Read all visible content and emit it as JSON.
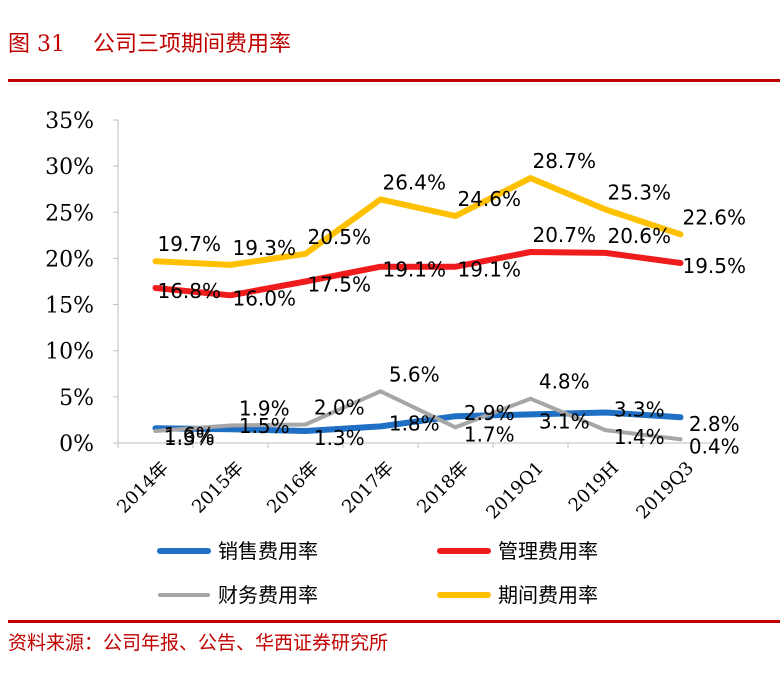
{
  "figure": {
    "number": "图 31",
    "title": "公司三项期间费用率",
    "source": "资料来源：公司年报、公告、华西证券研究所"
  },
  "chart_data": {
    "type": "line",
    "categories": [
      "2014年",
      "2015年",
      "2016年",
      "2017年",
      "2018年",
      "2019Q1",
      "2019H",
      "2019Q3"
    ],
    "ylim": [
      0,
      35
    ],
    "yticks": [
      "0%",
      "5%",
      "10%",
      "15%",
      "20%",
      "25%",
      "30%",
      "35%"
    ],
    "grid": false,
    "legend_position": "bottom",
    "series": [
      {
        "name": "销售费用率",
        "color": "#1f6fc4",
        "values": [
          1.6,
          1.5,
          1.3,
          1.8,
          2.9,
          3.1,
          3.3,
          2.8
        ],
        "labels": [
          "1.6%",
          "1.5%",
          "1.3%",
          "1.8%",
          "2.9%",
          "3.1%",
          "3.3%",
          "2.8%"
        ]
      },
      {
        "name": "管理费用率",
        "color": "#ee1c1c",
        "values": [
          16.8,
          16.0,
          17.5,
          19.1,
          19.1,
          20.7,
          20.6,
          19.5
        ],
        "labels": [
          "16.8%",
          "16.0%",
          "17.5%",
          "19.1%",
          "19.1%",
          "20.7%",
          "20.6%",
          "19.5%"
        ]
      },
      {
        "name": "财务费用率",
        "color": "#a6a6a6",
        "values": [
          1.3,
          1.9,
          2.0,
          5.6,
          1.7,
          4.8,
          1.4,
          0.4
        ],
        "labels": [
          "1.3%",
          "1.9%",
          "2.0%",
          "5.6%",
          "1.7%",
          "4.8%",
          "1.4%",
          "0.4%"
        ]
      },
      {
        "name": "期间费用率",
        "color": "#ffc000",
        "values": [
          19.7,
          19.3,
          20.5,
          26.4,
          24.6,
          28.7,
          25.3,
          22.6
        ],
        "labels": [
          "19.7%",
          "19.3%",
          "20.5%",
          "26.4%",
          "24.6%",
          "28.7%",
          "25.3%",
          "22.6%"
        ]
      }
    ]
  }
}
